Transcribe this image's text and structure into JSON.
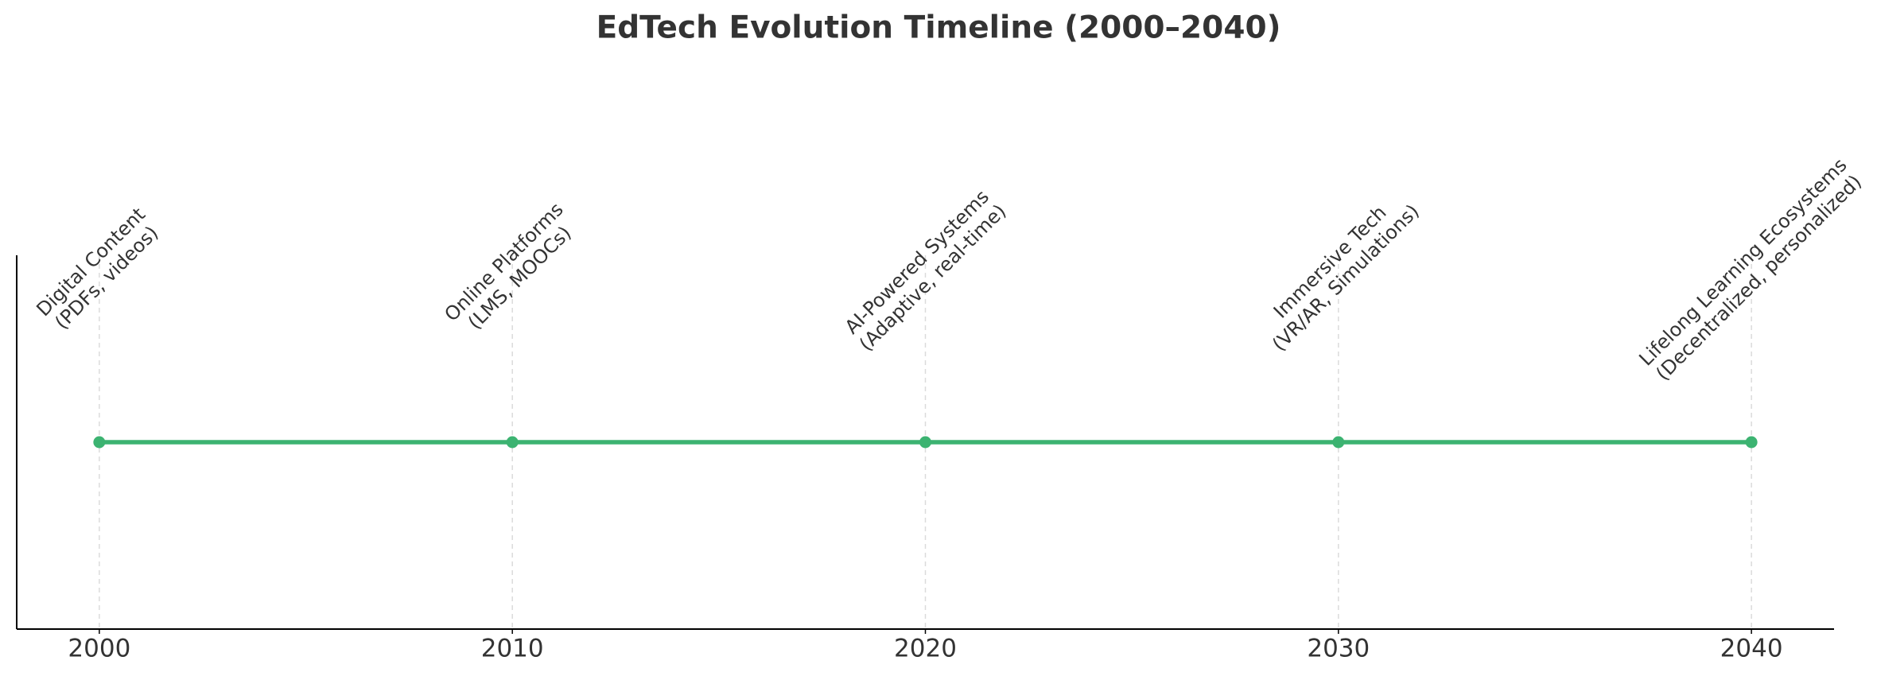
{
  "chart_data": {
    "type": "timeline",
    "title": "EdTech Evolution Timeline (2000–2040)",
    "x": [
      2000,
      2010,
      2020,
      2030,
      2040
    ],
    "values": [
      0,
      0,
      0,
      0,
      0
    ],
    "labels": [
      [
        "Digital Content",
        "(PDFs, videos)"
      ],
      [
        "Online Platforms",
        "(LMS, MOOCs)"
      ],
      [
        "AI-Powered Systems",
        "(Adaptive, real-time)"
      ],
      [
        "Immersive Tech",
        "(VR/AR, Simulations)"
      ],
      [
        "Lifelong Learning Ecosystems",
        "(Decentralized, personalized)"
      ]
    ],
    "color": "#3cb371",
    "xlim": [
      1998,
      2042
    ],
    "xticks": [
      2000,
      2010,
      2020,
      2030,
      2040
    ],
    "ylim": [
      -1,
      1
    ],
    "grid": true
  }
}
